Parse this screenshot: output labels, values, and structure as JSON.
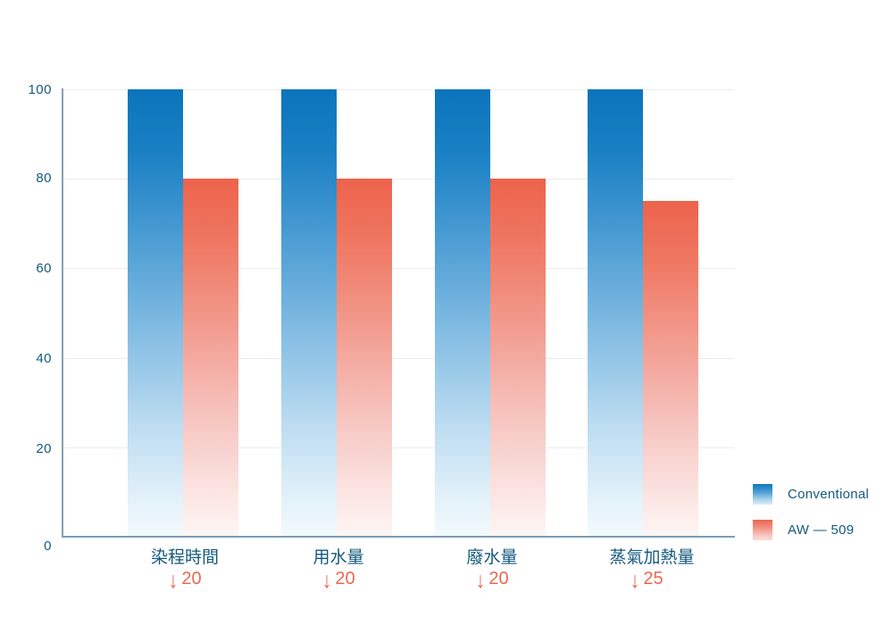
{
  "chart_data": {
    "type": "bar",
    "title": "",
    "xlabel": "",
    "ylabel": "",
    "categories": [
      "染程時間",
      "用水量",
      "廢水量",
      "蒸氣加熱量"
    ],
    "series": [
      {
        "name": "Conventional",
        "color": "#0b74bc",
        "values": [
          100,
          100,
          100,
          100
        ]
      },
      {
        "name": "AW — 509",
        "color": "#ed634c",
        "values": [
          80,
          80,
          80,
          75
        ]
      }
    ],
    "annotations": [
      {
        "arrow": "↓",
        "value": "20"
      },
      {
        "arrow": "↓",
        "value": "20"
      },
      {
        "arrow": "↓",
        "value": "20"
      },
      {
        "arrow": "↓",
        "value": "25"
      }
    ],
    "ylim": [
      0,
      100
    ],
    "yticks": [
      "100",
      "80",
      "60",
      "40",
      "20",
      "0"
    ],
    "grid": true,
    "gradient_bars": true,
    "legend_position": "bottom-right"
  },
  "legend": {
    "items": [
      {
        "label": "Conventional",
        "color": "#0b74bc"
      },
      {
        "label": "AW — 509",
        "color": "#ed634c"
      }
    ]
  },
  "colors": {
    "conventional_blue": "#0b74bc",
    "aw509_red": "#ed634c",
    "label_teal": "#15597e",
    "annotation_red": "#e9694f",
    "axis_line": "#7d9db6",
    "gridline": "#ececec",
    "background": "#ffffff"
  }
}
